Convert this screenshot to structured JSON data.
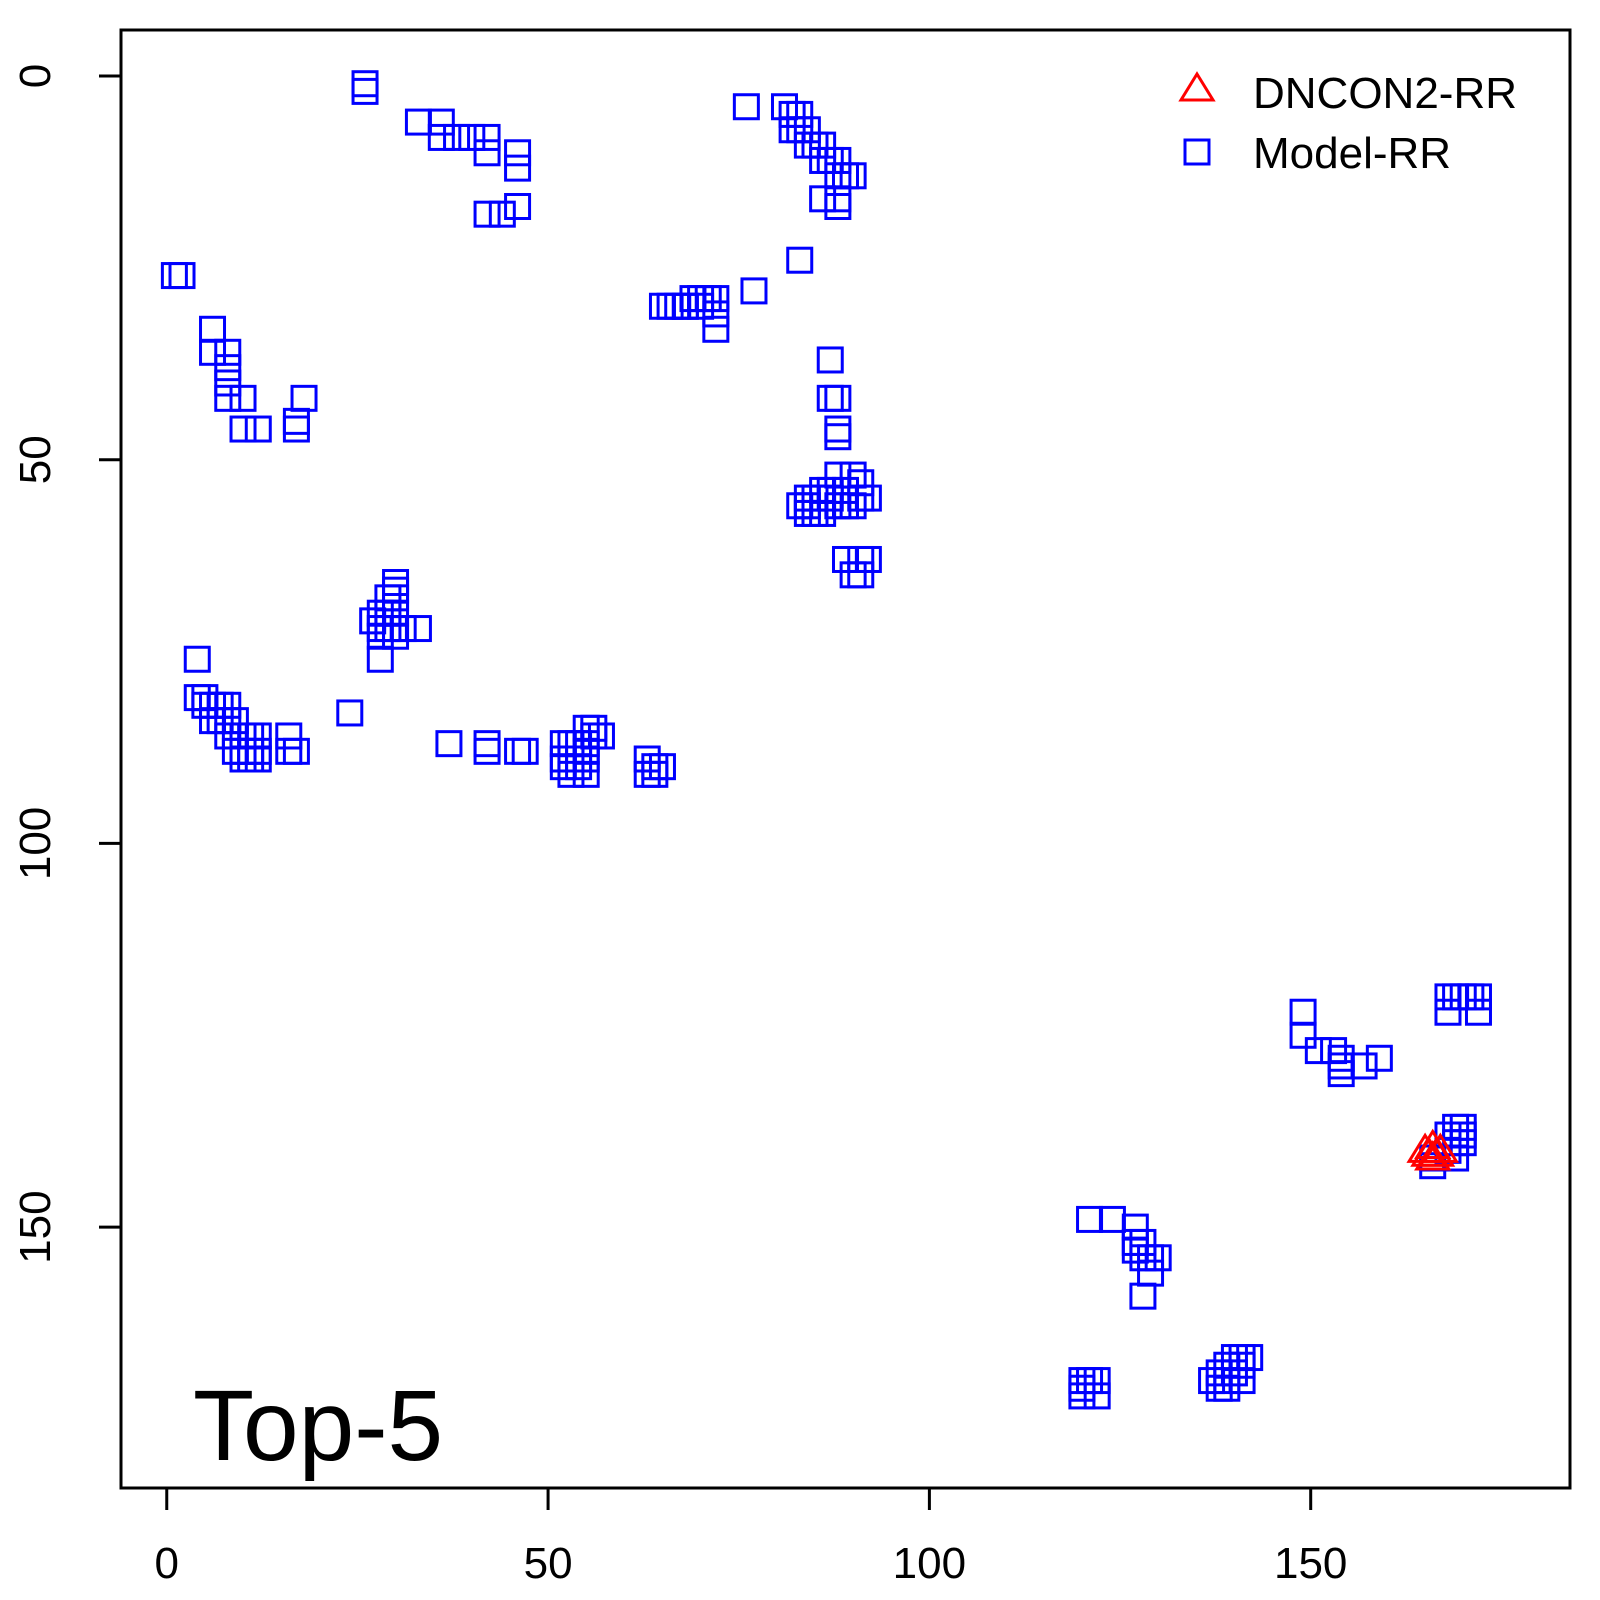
{
  "chart_data": {
    "type": "scatter",
    "title": "",
    "xlabel": "",
    "ylabel": "",
    "xlim": [
      -6,
      184
    ],
    "ylim": [
      -6,
      184
    ],
    "y_reversed": true,
    "x_ticks": [
      0,
      50,
      100,
      150
    ],
    "y_ticks": [
      0,
      50,
      100,
      150
    ],
    "panel_label": "Top-5",
    "legend": {
      "position": "top-right",
      "entries": [
        {
          "label": "DNCON2-RR",
          "marker": "triangle",
          "color": "#ff0000"
        },
        {
          "label": "Model-RR",
          "marker": "square",
          "color": "#0000ff"
        }
      ]
    },
    "series": [
      {
        "name": "DNCON2-RR",
        "marker": "triangle",
        "color": "#ff0000",
        "points": [
          [
            165,
            140
          ],
          [
            166,
            139.5
          ],
          [
            167,
            140
          ],
          [
            165.5,
            140.5
          ],
          [
            166.5,
            140.5
          ],
          [
            166,
            141
          ]
        ]
      },
      {
        "name": "Model-RR",
        "marker": "square",
        "color": "#0000ff",
        "points": [
          [
            26,
            1
          ],
          [
            26,
            2
          ],
          [
            33,
            6
          ],
          [
            36,
            6
          ],
          [
            36,
            8
          ],
          [
            38,
            8
          ],
          [
            40,
            8
          ],
          [
            42,
            8
          ],
          [
            42,
            10
          ],
          [
            46,
            10
          ],
          [
            46,
            12
          ],
          [
            44,
            18
          ],
          [
            46,
            17
          ],
          [
            42,
            18
          ],
          [
            76,
            4
          ],
          [
            81,
            4
          ],
          [
            82,
            5
          ],
          [
            83,
            5
          ],
          [
            82,
            7
          ],
          [
            83,
            7
          ],
          [
            84,
            7
          ],
          [
            84,
            9
          ],
          [
            85,
            9
          ],
          [
            86,
            9
          ],
          [
            86,
            11
          ],
          [
            87,
            11
          ],
          [
            88,
            11
          ],
          [
            88,
            13
          ],
          [
            89,
            13
          ],
          [
            90,
            13
          ],
          [
            86,
            16
          ],
          [
            88,
            16
          ],
          [
            88,
            17
          ],
          [
            83,
            24
          ],
          [
            1,
            26
          ],
          [
            2,
            26
          ],
          [
            65,
            30
          ],
          [
            66,
            30
          ],
          [
            67,
            30
          ],
          [
            68,
            30
          ],
          [
            69,
            29
          ],
          [
            70,
            29
          ],
          [
            71,
            29
          ],
          [
            72,
            29
          ],
          [
            68,
            30
          ],
          [
            70,
            30
          ],
          [
            72,
            31
          ],
          [
            77,
            28
          ],
          [
            72,
            33
          ],
          [
            6,
            33
          ],
          [
            6,
            36
          ],
          [
            8,
            36
          ],
          [
            8,
            38
          ],
          [
            8,
            40
          ],
          [
            8,
            42
          ],
          [
            10,
            42
          ],
          [
            10,
            46
          ],
          [
            12,
            46
          ],
          [
            17,
            45
          ],
          [
            18,
            42
          ],
          [
            17,
            46
          ],
          [
            87,
            37
          ],
          [
            87,
            42
          ],
          [
            88,
            42
          ],
          [
            88,
            46
          ],
          [
            88,
            47
          ],
          [
            88,
            52
          ],
          [
            90,
            52
          ],
          [
            91,
            53
          ],
          [
            91,
            55
          ],
          [
            92,
            55
          ],
          [
            89,
            54
          ],
          [
            87,
            54
          ],
          [
            87,
            55
          ],
          [
            86,
            54
          ],
          [
            85,
            55
          ],
          [
            84,
            55
          ],
          [
            84,
            56
          ],
          [
            83,
            56
          ],
          [
            85,
            57
          ],
          [
            86,
            57
          ],
          [
            84,
            57
          ],
          [
            88,
            56
          ],
          [
            89,
            56
          ],
          [
            90,
            56
          ],
          [
            89,
            63
          ],
          [
            91,
            63
          ],
          [
            92,
            63
          ],
          [
            90,
            65
          ],
          [
            91,
            65
          ],
          [
            30,
            66
          ],
          [
            30,
            67
          ],
          [
            29,
            68
          ],
          [
            30,
            68
          ],
          [
            28,
            70
          ],
          [
            29,
            70
          ],
          [
            30,
            70
          ],
          [
            27,
            71
          ],
          [
            28,
            72
          ],
          [
            29,
            72
          ],
          [
            30,
            72
          ],
          [
            28,
            73
          ],
          [
            30,
            73
          ],
          [
            31,
            72
          ],
          [
            33,
            72
          ],
          [
            28,
            76
          ],
          [
            4,
            76
          ],
          [
            4,
            81
          ],
          [
            5,
            81
          ],
          [
            5,
            82
          ],
          [
            6,
            82
          ],
          [
            7,
            82
          ],
          [
            8,
            82
          ],
          [
            6,
            84
          ],
          [
            7,
            84
          ],
          [
            8,
            84
          ],
          [
            9,
            84
          ],
          [
            8,
            86
          ],
          [
            9,
            86
          ],
          [
            10,
            86
          ],
          [
            11,
            86
          ],
          [
            12,
            86
          ],
          [
            9,
            88
          ],
          [
            10,
            88
          ],
          [
            11,
            88
          ],
          [
            12,
            88
          ],
          [
            10,
            89
          ],
          [
            11,
            89
          ],
          [
            12,
            89
          ],
          [
            16,
            86
          ],
          [
            16,
            88
          ],
          [
            17,
            88
          ],
          [
            24,
            83
          ],
          [
            37,
            87
          ],
          [
            42,
            87
          ],
          [
            42,
            88
          ],
          [
            46,
            88
          ],
          [
            47,
            88
          ],
          [
            52,
            87
          ],
          [
            53,
            87
          ],
          [
            54,
            87
          ],
          [
            55,
            87
          ],
          [
            56,
            86
          ],
          [
            57,
            86
          ],
          [
            56,
            85
          ],
          [
            55,
            85
          ],
          [
            52,
            89
          ],
          [
            53,
            89
          ],
          [
            54,
            89
          ],
          [
            55,
            89
          ],
          [
            52,
            90
          ],
          [
            53,
            91
          ],
          [
            55,
            91
          ],
          [
            54,
            90
          ],
          [
            55,
            88
          ],
          [
            63,
            89
          ],
          [
            63,
            91
          ],
          [
            64,
            90
          ],
          [
            65,
            90
          ],
          [
            64,
            91
          ],
          [
            149,
            122
          ],
          [
            149,
            125
          ],
          [
            151,
            127
          ],
          [
            153,
            127
          ],
          [
            154,
            128
          ],
          [
            154,
            129
          ],
          [
            154,
            130
          ],
          [
            157,
            129
          ],
          [
            159,
            128
          ],
          [
            168,
            120
          ],
          [
            169,
            120
          ],
          [
            170,
            120
          ],
          [
            171,
            120
          ],
          [
            172,
            120
          ],
          [
            168,
            122
          ],
          [
            172,
            122
          ],
          [
            169,
            137
          ],
          [
            170,
            137
          ],
          [
            170,
            138
          ],
          [
            168,
            138
          ],
          [
            169,
            139
          ],
          [
            170,
            139
          ],
          [
            168,
            140
          ],
          [
            169,
            141
          ],
          [
            166,
            141
          ],
          [
            166,
            142
          ],
          [
            121,
            149
          ],
          [
            124,
            149
          ],
          [
            127,
            150
          ],
          [
            127,
            152
          ],
          [
            127,
            153
          ],
          [
            128,
            152
          ],
          [
            128,
            154
          ],
          [
            129,
            154
          ],
          [
            130,
            154
          ],
          [
            129,
            156
          ],
          [
            128,
            159
          ],
          [
            120,
            170
          ],
          [
            120,
            171
          ],
          [
            120,
            172
          ],
          [
            121,
            170
          ],
          [
            122,
            170
          ],
          [
            122,
            172
          ],
          [
            137,
            170
          ],
          [
            138,
            169
          ],
          [
            139,
            168
          ],
          [
            139,
            170
          ],
          [
            140,
            167
          ],
          [
            140,
            169
          ],
          [
            141,
            167
          ],
          [
            141,
            168
          ],
          [
            141,
            170
          ],
          [
            142,
            167
          ],
          [
            138,
            171
          ],
          [
            139,
            171
          ]
        ]
      }
    ]
  }
}
